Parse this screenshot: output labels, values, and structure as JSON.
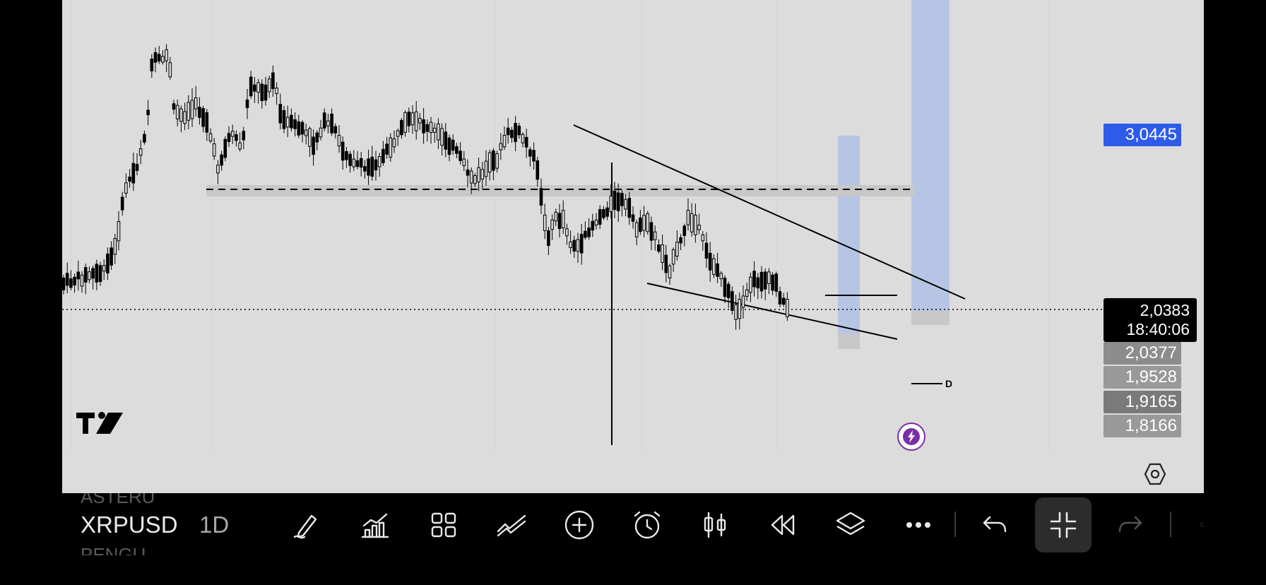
{
  "chart": {
    "symbol": "XRPUSD",
    "interval": "1D",
    "background_color": "#dcdcdc",
    "candle_color": "#000000",
    "highlight_color": "#b3c2e6"
  },
  "price_labels": {
    "target": {
      "value": "3,0445",
      "color": "#2e5be8"
    },
    "current_price": "2,0383",
    "countdown": "18:40:06",
    "levels": [
      {
        "value": "2,0377",
        "color": "#8c8c8c"
      },
      {
        "value": "1,9528",
        "color": "#999999"
      },
      {
        "value": "1,9165",
        "color": "#7a7a7a"
      },
      {
        "value": "1,8166",
        "color": "#999999"
      }
    ]
  },
  "annotation": {
    "label": "D"
  },
  "ghost_watchlist": [
    "ASTERU",
    "PENGU"
  ],
  "toolbar": {
    "items": [
      {
        "name": "drawing-tools-icon"
      },
      {
        "name": "indicators-icon"
      },
      {
        "name": "layouts-icon"
      },
      {
        "name": "trend-line-icon"
      },
      {
        "name": "add-icon"
      },
      {
        "name": "alert-icon"
      },
      {
        "name": "chart-type-icon"
      },
      {
        "name": "replay-icon"
      },
      {
        "name": "layers-icon"
      },
      {
        "name": "more-icon"
      }
    ]
  },
  "icons": {
    "logo": "tradingview-logo",
    "flash": "lightning-icon",
    "settings": "hexagon-settings-icon",
    "undo": "undo-icon",
    "redo": "redo-icon",
    "fullscreen_exit": "exit-fullscreen-icon"
  }
}
